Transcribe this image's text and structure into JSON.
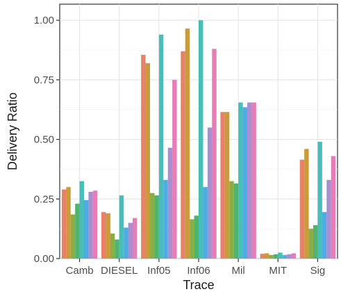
{
  "chart_data": {
    "type": "bar",
    "title": "",
    "xlabel": "Trace",
    "ylabel": "Delivery Ratio",
    "categories": [
      "Camb",
      "DIESEL",
      "Inf05",
      "Inf06",
      "Mil",
      "MIT",
      "Sig"
    ],
    "ylim": [
      0,
      1.05
    ],
    "yticks": [
      0.0,
      0.25,
      0.5,
      0.75,
      1.0
    ],
    "ytick_labels": [
      "0.00",
      "0.25",
      "0.50",
      "0.75",
      "1.00"
    ],
    "grid": true,
    "legend": "none",
    "series": [
      {
        "color": "#E58267",
        "values": [
          0.29,
          0.195,
          0.855,
          0.87,
          0.615,
          0.02,
          0.415
        ]
      },
      {
        "color": "#CB9A3A",
        "values": [
          0.3,
          0.19,
          0.82,
          0.965,
          0.615,
          0.022,
          0.46
        ]
      },
      {
        "color": "#8AAE44",
        "values": [
          0.185,
          0.105,
          0.275,
          0.165,
          0.325,
          0.015,
          0.125
        ]
      },
      {
        "color": "#4FB46D",
        "values": [
          0.23,
          0.08,
          0.265,
          0.18,
          0.315,
          0.018,
          0.14
        ]
      },
      {
        "color": "#48BDBA",
        "values": [
          0.325,
          0.265,
          0.94,
          1.0,
          0.655,
          0.025,
          0.49
        ]
      },
      {
        "color": "#4DACE2",
        "values": [
          0.245,
          0.13,
          0.33,
          0.3,
          0.635,
          0.015,
          0.195
        ]
      },
      {
        "color": "#A98FD0",
        "values": [
          0.28,
          0.15,
          0.465,
          0.55,
          0.655,
          0.018,
          0.33
        ]
      },
      {
        "color": "#E57DB9",
        "values": [
          0.285,
          0.17,
          0.75,
          0.88,
          0.655,
          0.022,
          0.43
        ]
      }
    ]
  }
}
